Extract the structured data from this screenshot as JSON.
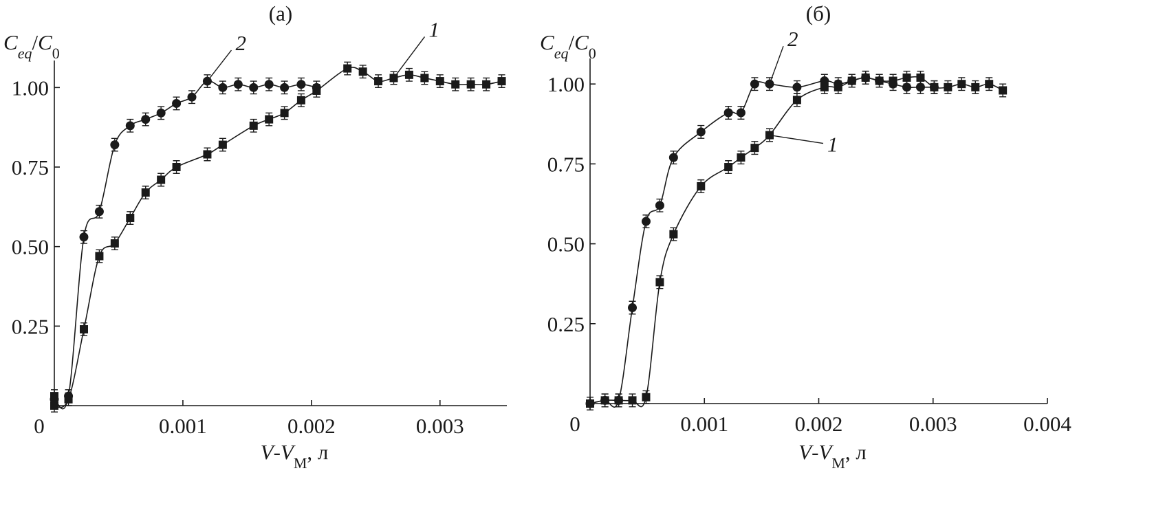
{
  "chart_data": [
    {
      "type": "line",
      "title": "(а)",
      "ylabel": [
        "C",
        "eq",
        "/",
        "C",
        "0"
      ],
      "xlabel": [
        "V",
        "-",
        "V",
        "М",
        ", л"
      ],
      "xlim": [
        0,
        0.00352
      ],
      "xticks": [
        0,
        0.001,
        0.002,
        0.003
      ],
      "ylim": [
        0,
        1.085
      ],
      "yticks": [
        0.25,
        {
          "value": 0.5,
          "label": "0.50"
        },
        0.75,
        {
          "value": 1,
          "label": "1.00"
        }
      ],
      "series": [
        {
          "name": "1",
          "marker": "square",
          "color": "#1a1a1a",
          "error": 0.02,
          "x": [
            0.0,
            0.0,
            0.00011,
            0.00023,
            0.00035,
            0.00047,
            0.00059,
            0.00071,
            0.00083,
            0.00095,
            0.00119,
            0.00131,
            0.00155,
            0.00167,
            0.00179,
            0.00192,
            0.00204,
            0.00228,
            0.0024,
            0.00252,
            0.00264,
            0.00276,
            0.00288,
            0.003,
            0.00312,
            0.00324,
            0.00336,
            0.00348
          ],
          "values": [
            0.03,
            0.0,
            0.02,
            0.24,
            0.47,
            0.51,
            0.59,
            0.67,
            0.71,
            0.75,
            0.79,
            0.82,
            0.88,
            0.9,
            0.92,
            0.96,
            0.99,
            1.06,
            1.05,
            1.02,
            1.03,
            1.04,
            1.03,
            1.02,
            1.01,
            1.01,
            1.01,
            1.02
          ]
        },
        {
          "name": "2",
          "marker": "circle",
          "color": "#1a1a1a",
          "error": 0.02,
          "x": [
            0.0,
            0.00011,
            0.00023,
            0.00035,
            0.00047,
            0.00059,
            0.00071,
            0.00083,
            0.00095,
            0.00107,
            0.00119,
            0.00131,
            0.00143,
            0.00155,
            0.00167,
            0.00179,
            0.00192,
            0.00204
          ],
          "values": [
            0.02,
            0.03,
            0.53,
            0.61,
            0.82,
            0.88,
            0.9,
            0.92,
            0.95,
            0.97,
            1.02,
            1.0,
            1.01,
            1.0,
            1.01,
            1.0,
            1.01,
            1.0
          ]
        }
      ]
    },
    {
      "type": "line",
      "title": "(б)",
      "ylabel": [
        "C",
        "eq",
        "/",
        "C",
        "0"
      ],
      "xlabel": [
        "V",
        "-",
        "V",
        "М",
        ", л"
      ],
      "xlim": [
        0,
        0.004
      ],
      "xticks": [
        0,
        0.001,
        0.002,
        0.003,
        0.004
      ],
      "ylim": [
        0,
        1.08
      ],
      "yticks": [
        0.25,
        {
          "value": 0.5,
          "label": "0.50"
        },
        0.75,
        {
          "value": 1,
          "label": "1.00"
        }
      ],
      "series": [
        {
          "name": "1",
          "marker": "square",
          "color": "#1a1a1a",
          "error": 0.02,
          "x": [
            0.0,
            0.00013,
            0.00025,
            0.00037,
            0.00049,
            0.00061,
            0.00073,
            0.00097,
            0.00121,
            0.00132,
            0.00144,
            0.00157,
            0.00181,
            0.00205,
            0.00217,
            0.00229,
            0.00241,
            0.00253,
            0.00265,
            0.00277,
            0.00289,
            0.00301,
            0.00313,
            0.00325,
            0.00337,
            0.00349,
            0.00361
          ],
          "values": [
            0.0,
            0.01,
            0.01,
            0.01,
            0.02,
            0.38,
            0.53,
            0.68,
            0.74,
            0.77,
            0.8,
            0.84,
            0.95,
            0.99,
            0.99,
            1.01,
            1.02,
            1.01,
            1.01,
            1.02,
            1.02,
            0.99,
            0.99,
            1.0,
            0.99,
            1.0,
            0.98
          ]
        },
        {
          "name": "2",
          "marker": "circle",
          "color": "#1a1a1a",
          "error": 0.02,
          "x": [
            0.0,
            0.00013,
            0.00025,
            0.00037,
            0.00049,
            0.00061,
            0.00073,
            0.00097,
            0.00121,
            0.00132,
            0.00144,
            0.00157,
            0.00181,
            0.00205,
            0.00217,
            0.00229,
            0.00241,
            0.00253,
            0.00265,
            0.00277,
            0.00289,
            0.00301
          ],
          "values": [
            0.0,
            0.01,
            0.01,
            0.3,
            0.57,
            0.62,
            0.77,
            0.85,
            0.91,
            0.91,
            1.0,
            1.0,
            0.99,
            1.01,
            1.0,
            1.01,
            1.02,
            1.01,
            1.0,
            0.99,
            0.99,
            0.99
          ]
        }
      ]
    }
  ]
}
